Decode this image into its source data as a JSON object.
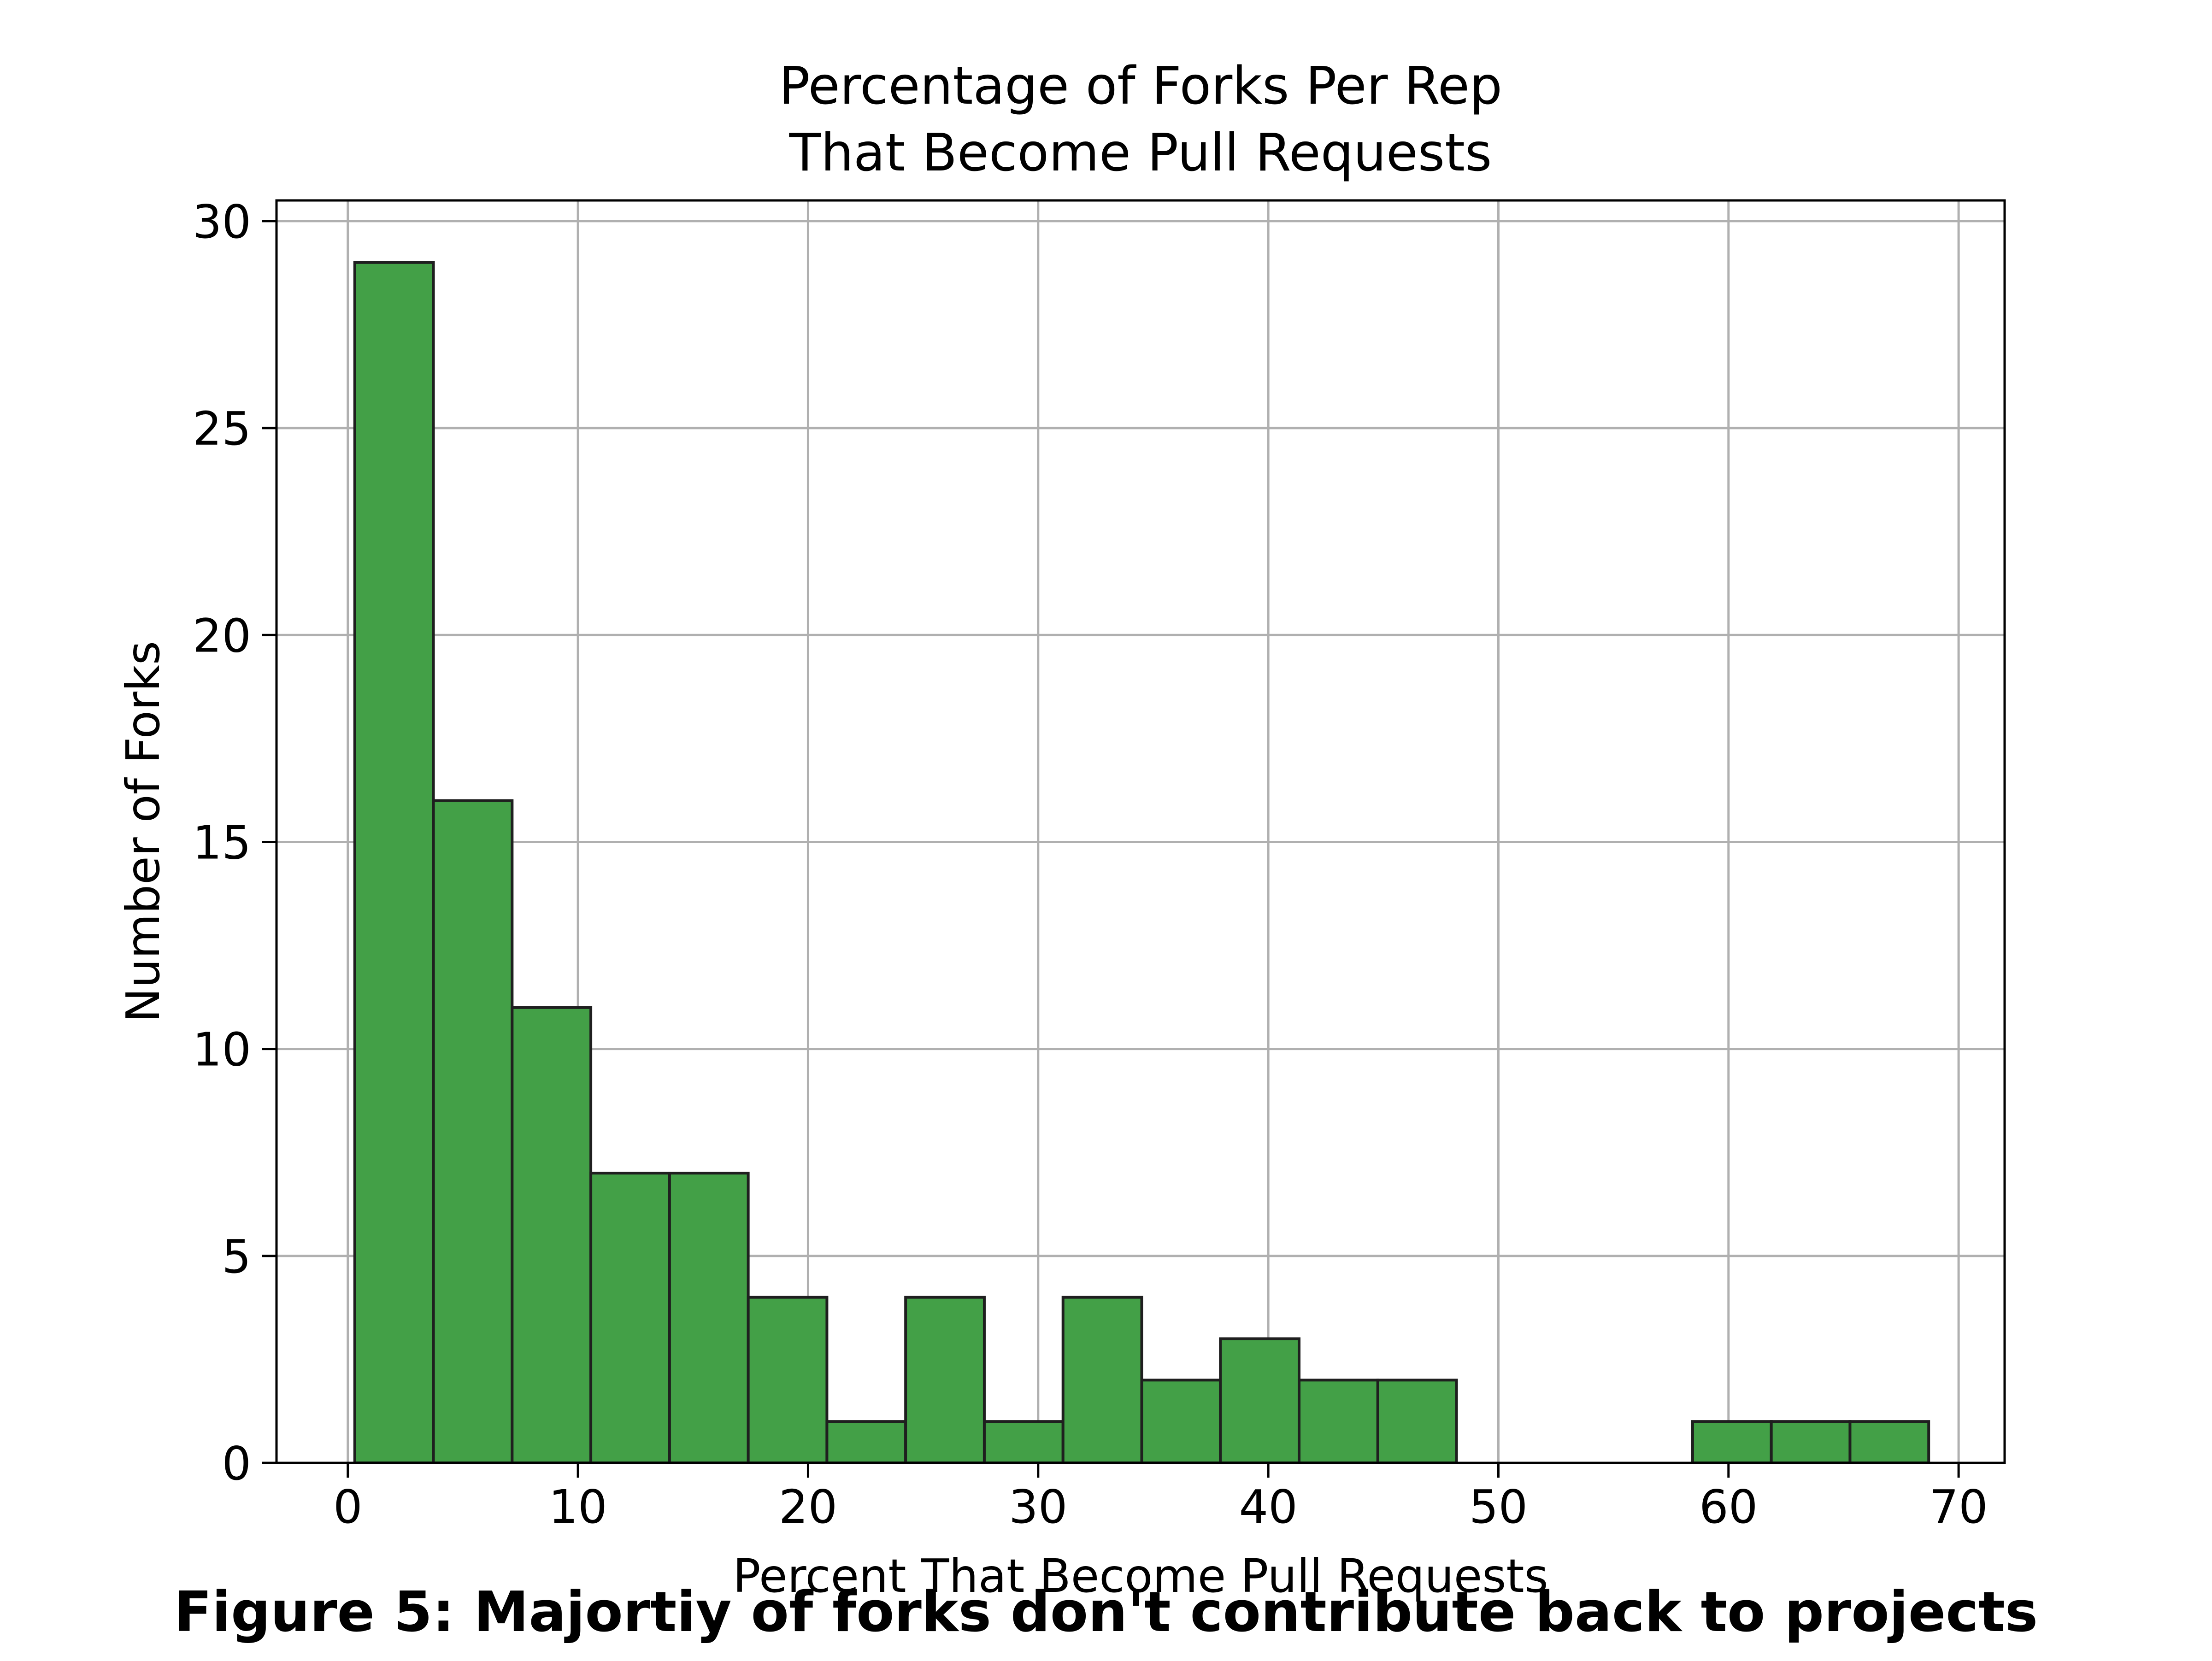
{
  "caption": "Figure 5: Majortiy of forks don't contribute back to projects",
  "colors": {
    "bar_fill": "#43a047",
    "bar_edge": "#1f1f1f",
    "grid": "#b0b0b0",
    "axis": "#000000"
  },
  "chart_data": {
    "type": "bar",
    "title_lines": [
      "Percentage of Forks Per Rep",
      "That Become Pull Requests"
    ],
    "xlabel": "Percent That Become Pull Requests",
    "ylabel": "Number of Forks",
    "xlim": [
      -3.1,
      72.0
    ],
    "ylim": [
      0,
      30.5
    ],
    "xticks": [
      0,
      10,
      20,
      30,
      40,
      50,
      60,
      70
    ],
    "yticks": [
      0,
      5,
      10,
      15,
      20,
      25,
      30
    ],
    "grid": true,
    "bin_edges": [
      0.3,
      3.72,
      7.14,
      10.56,
      13.98,
      17.4,
      20.82,
      24.24,
      27.66,
      31.08,
      34.5,
      37.92,
      41.34,
      44.76,
      48.18,
      51.6,
      55.02,
      58.44,
      61.86,
      65.28,
      68.7
    ],
    "values": [
      29,
      16,
      11,
      7,
      7,
      4,
      1,
      4,
      1,
      4,
      2,
      3,
      2,
      2,
      0,
      0,
      0,
      1,
      1,
      1
    ]
  }
}
